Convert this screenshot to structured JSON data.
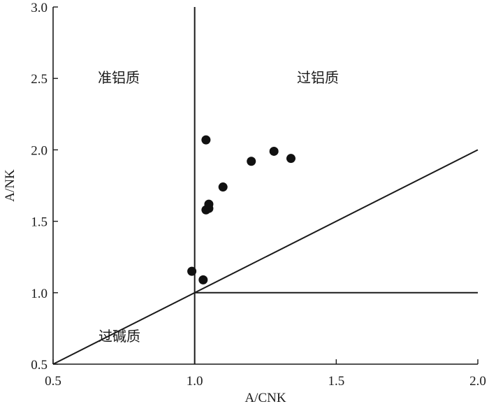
{
  "chart_data": {
    "type": "scatter",
    "xlabel": "A/CNK",
    "ylabel": "A/NK",
    "xlim": [
      0.5,
      2.0
    ],
    "ylim": [
      0.5,
      3.0
    ],
    "xticks": [
      "0.5",
      "1.0",
      "1.5",
      "2.0"
    ],
    "yticks": [
      "0.5",
      "1.0",
      "1.5",
      "2.0",
      "2.5",
      "3.0"
    ],
    "grid": false,
    "region_labels": {
      "metaluminous": "准铝质",
      "peraluminous": "过铝质",
      "peralkaline": "过碱质"
    },
    "reference_lines": [
      {
        "name": "A/CNK = 1.0",
        "x1": 1.0,
        "y1": 0.5,
        "x2": 1.0,
        "y2": 3.0
      },
      {
        "name": "A/NK = 1.0",
        "x1": 1.0,
        "y1": 1.0,
        "x2": 2.0,
        "y2": 1.0
      },
      {
        "name": "A/NK = A/CNK",
        "x1": 0.5,
        "y1": 0.5,
        "x2": 2.0,
        "y2": 2.0
      }
    ],
    "points": [
      {
        "x": 0.99,
        "y": 1.15
      },
      {
        "x": 1.03,
        "y": 1.09
      },
      {
        "x": 1.04,
        "y": 2.07
      },
      {
        "x": 1.04,
        "y": 1.58
      },
      {
        "x": 1.05,
        "y": 1.59
      },
      {
        "x": 1.05,
        "y": 1.62
      },
      {
        "x": 1.1,
        "y": 1.74
      },
      {
        "x": 1.2,
        "y": 1.92
      },
      {
        "x": 1.28,
        "y": 1.99
      },
      {
        "x": 1.34,
        "y": 1.94
      }
    ]
  }
}
